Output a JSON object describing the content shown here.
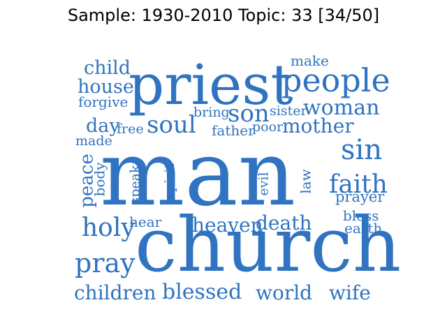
{
  "title": "Sample: 1930-2010 Topic: 33 [34/50]",
  "style": {
    "word_color": "#2f73c1"
  },
  "words": {
    "man": "man",
    "church": "church",
    "priest": "priest",
    "people": "people",
    "woman": "woman",
    "mother": "mother",
    "son": "son",
    "soul": "soul",
    "sin": "sin",
    "faith": "faith",
    "prayer": "prayer",
    "bless": "bless",
    "earth": "earth",
    "holy": "holy",
    "pray": "pray",
    "heaven": "heaven",
    "death": "death",
    "children": "children",
    "blessed": "blessed",
    "world": "world",
    "wife": "wife",
    "child": "child",
    "house": "house",
    "forgive": "forgive",
    "day": "day",
    "free": "free",
    "made": "made",
    "peace": "peace",
    "body": "body",
    "speak": "speak",
    "spirit": "spirit",
    "evil": "evil",
    "law": "law",
    "hear": "hear",
    "bring": "bring",
    "father": "father",
    "poor": "poor",
    "sister": "sister",
    "make": "make"
  }
}
